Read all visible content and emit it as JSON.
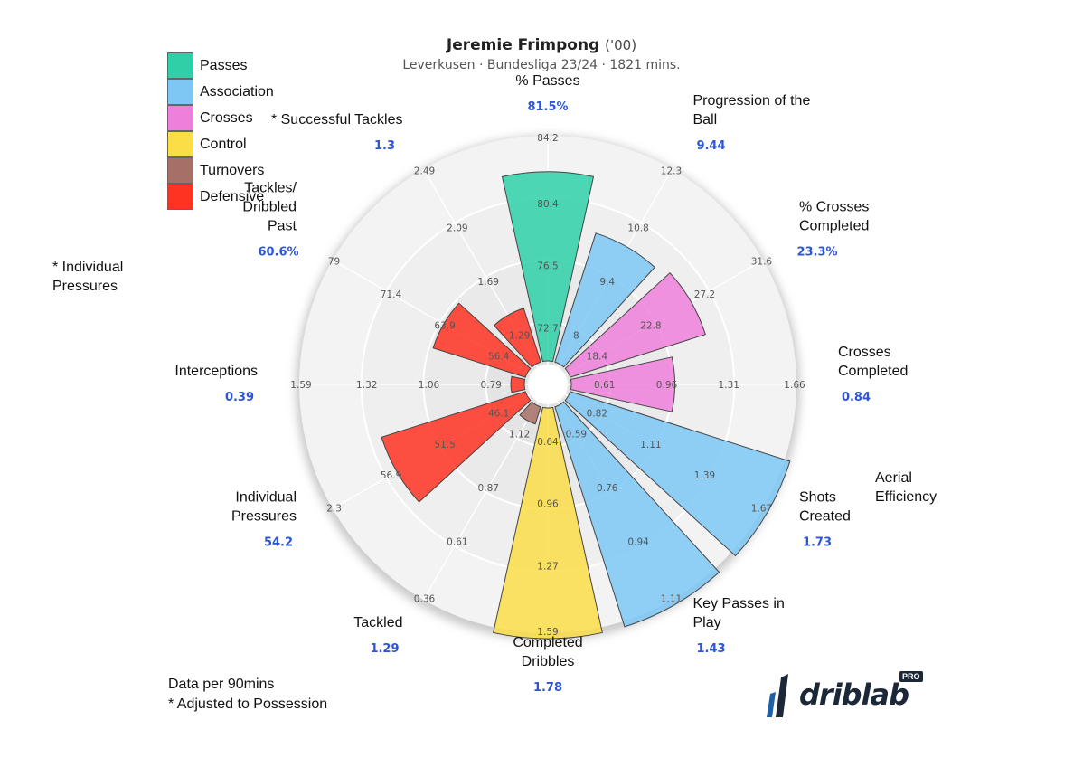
{
  "header": {
    "player_name": "Jeremie Frimpong",
    "birth_year": "('00)",
    "subtitle": "Leverkusen · Bundesliga 23/24 · 1821 mins."
  },
  "legend": [
    {
      "label": "Passes",
      "color": "#2fd0a8"
    },
    {
      "label": "Association",
      "color": "#7dc7f5"
    },
    {
      "label": "Crosses",
      "color": "#ee80dc"
    },
    {
      "label": "Control",
      "color": "#fbdd46"
    },
    {
      "label": "Turnovers",
      "color": "#a77066"
    },
    {
      "label": "Defensive",
      "color": "#ff3322"
    }
  ],
  "stray_label": "* Individual\nPressures",
  "footnotes": {
    "per90": "Data per 90mins",
    "adjusted": "* Adjusted to Possession"
  },
  "logo": {
    "text": "driblab",
    "badge": "PRO"
  },
  "chart_data": {
    "type": "polar_bar",
    "title": "Jeremie Frimpong ('00)",
    "subtitle": "Leverkusen · Bundesliga 23/24 · 1821 mins.",
    "ring_levels": 4,
    "slices": [
      {
        "label": "% Passes",
        "value_label": "81.5%",
        "group": "Passes",
        "fraction": 0.84,
        "ticks": [
          "72.7",
          "76.5",
          "80.4",
          "84.2"
        ]
      },
      {
        "label": "Progression of the\nBall",
        "value_label": "9.44",
        "group": "Association",
        "fraction": 0.6,
        "ticks": [
          "8",
          "9.4",
          "10.8",
          "12.3"
        ]
      },
      {
        "label": "% Crosses\nCompleted",
        "value_label": "23.3%",
        "group": "Crosses",
        "fraction": 0.63,
        "ticks": [
          "18.4",
          "22.8",
          "27.2",
          "31.6"
        ]
      },
      {
        "label": "Crosses\nCompleted",
        "value_label": "0.84",
        "group": "Crosses",
        "fraction": 0.46,
        "ticks": [
          "0.61",
          "0.96",
          "1.31",
          "1.66"
        ]
      },
      {
        "label": "Shots\nCreated",
        "value_label": "1.73",
        "group": "Association",
        "fraction": 1.0,
        "ticks": [
          "0.82",
          "1.11",
          "1.39",
          "1.67"
        ]
      },
      {
        "label": "Key Passes in\nPlay",
        "value_label": "1.43",
        "group": "Association",
        "fraction": 1.0,
        "ticks": [
          "0.59",
          "0.76",
          "0.94",
          "1.11"
        ]
      },
      {
        "label": "Completed\nDribbles",
        "value_label": "1.78",
        "group": "Control",
        "fraction": 1.0,
        "ticks": [
          "0.64",
          "0.96",
          "1.27",
          "1.59"
        ]
      },
      {
        "label": "Tackled",
        "value_label": "1.29",
        "group": "Turnovers",
        "fraction": 0.08,
        "ticks": [
          "1.12",
          "0.87",
          "0.61",
          "0.36"
        ]
      },
      {
        "label": "Individual\nPressures",
        "value_label": "54.2",
        "group": "Defensive",
        "fraction": 0.67,
        "ticks": [
          "46.1",
          "51.5",
          "56.9",
          "2.3"
        ]
      },
      {
        "label": "Interceptions",
        "value_label": "0.39",
        "group": "Defensive",
        "fraction": 0.06,
        "ticks": [
          "0.79",
          "1.06",
          "1.32",
          "1.59"
        ]
      },
      {
        "label": "Tackles/\nDribbled\nPast",
        "value_label": "60.6%",
        "group": "Defensive",
        "fraction": 0.43,
        "ticks": [
          "56.4",
          "63.9",
          "71.4",
          "79"
        ]
      },
      {
        "label": "* Successful Tackles",
        "value_label": "1.3",
        "group": "Defensive",
        "fraction": 0.25,
        "ticks": [
          "1.29",
          "1.69",
          "2.09",
          "2.49"
        ]
      }
    ],
    "extra_labels": [
      {
        "label": "Aerial\nEfficiency"
      }
    ]
  }
}
